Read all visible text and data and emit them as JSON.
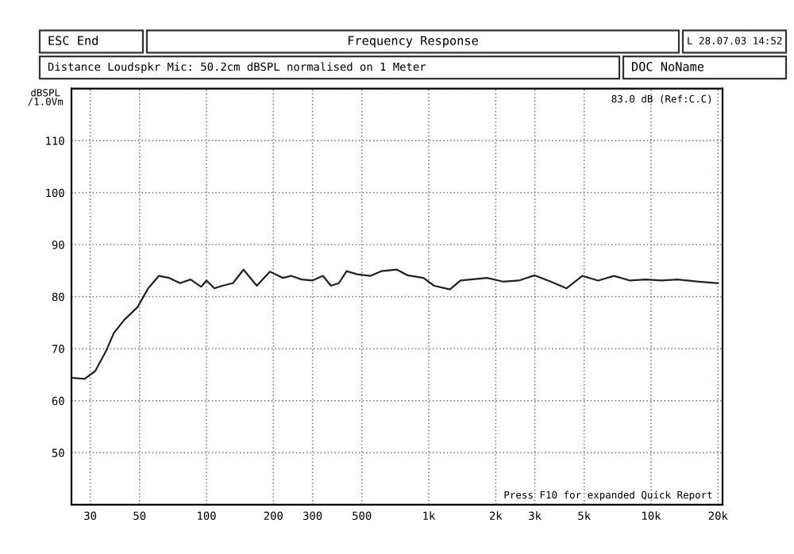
{
  "chart_data": {
    "type": "line",
    "title": "Frequency Response",
    "subtitle": "Distance Loudspkr Mic: 50.2cm dBSPL normalised on 1 Meter",
    "ylabel": "dBSPL\n/1.0Vm",
    "annotations": [
      "ESC End",
      "L 28.07.03 14:52",
      "DOC NoName",
      "83.0 dB (Ref:C.C)",
      "Press F10 for expanded Quick Report"
    ],
    "log": "x",
    "grid": true,
    "legend": false,
    "marker": "none",
    "line_style": "solid",
    "xlim": [
      24.7,
      20960
    ],
    "ylim": [
      40,
      120
    ],
    "xticks": [
      30,
      50,
      100,
      200,
      300,
      500,
      {
        "value": 1000,
        "label": "1k"
      },
      {
        "value": 2000,
        "label": "2k"
      },
      {
        "value": 3000,
        "label": "3k"
      },
      {
        "value": 5000,
        "label": "5k"
      },
      {
        "value": 10000,
        "label": "10k"
      },
      {
        "value": 20000,
        "label": "20k"
      }
    ],
    "yticks": [
      {
        "value": 40,
        "label": null
      },
      50,
      60,
      70,
      80,
      90,
      100,
      110,
      {
        "value": 120,
        "label": null
      }
    ],
    "series": [
      {
        "color": "#222222",
        "x": [
          25,
          28.3,
          31.6,
          35.3,
          38.3,
          42.8,
          49,
          54.7,
          61.1,
          68.1,
          76,
          84.8,
          94.6,
          100,
          108.6,
          117.9,
          131.6,
          146.8,
          168.4,
          193,
          221,
          240,
          268,
          299,
          334,
          363,
          394,
          427,
          477,
          547,
          611,
          719,
          803,
          946,
          1056,
          1245,
          1389,
          1550,
          1828,
          2154,
          2541,
          2995,
          3532,
          4161,
          4903,
          5780,
          6813,
          8035,
          9466,
          11160,
          13150,
          16380,
          20000
        ],
        "values": [
          64.4,
          64.2,
          65.7,
          69.5,
          73,
          75.6,
          78,
          81.6,
          84,
          83.6,
          82.6,
          83.3,
          81.9,
          83.1,
          81.6,
          82.1,
          82.6,
          85.2,
          82.1,
          84.8,
          83.6,
          84,
          83.3,
          83.1,
          84,
          82.1,
          82.6,
          84.9,
          84.3,
          84,
          84.9,
          85.2,
          84.1,
          83.6,
          82.1,
          81.4,
          83.1,
          83.3,
          83.6,
          82.9,
          83.1,
          84.1,
          82.9,
          81.6,
          84,
          83.1,
          84,
          83.1,
          83.3,
          83.1,
          83.3,
          82.9,
          82.6
        ]
      }
    ]
  }
}
